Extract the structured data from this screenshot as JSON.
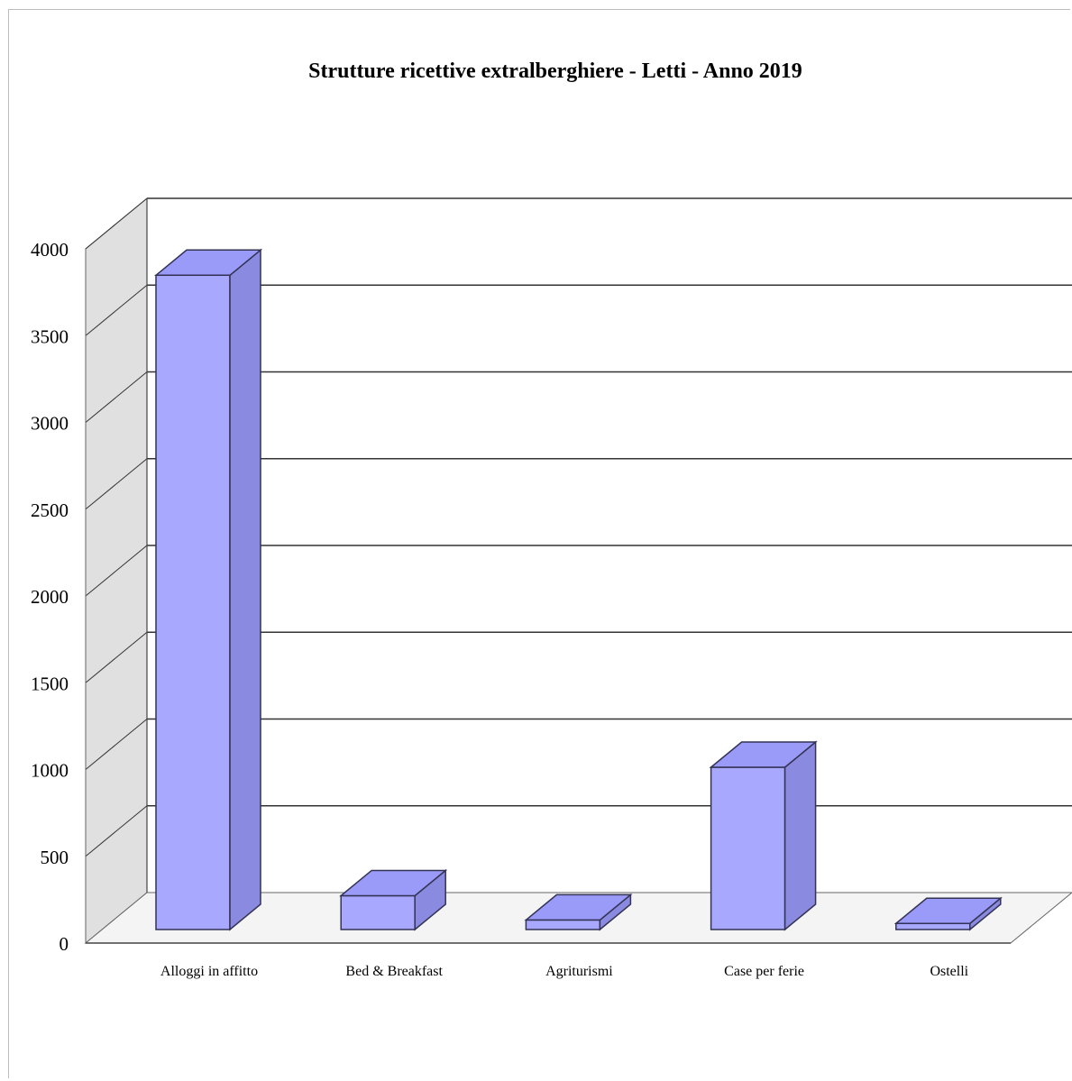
{
  "chart_data": {
    "type": "bar",
    "title": "Strutture ricettive extralberghiere - Letti - Anno 2019",
    "xlabel": "",
    "ylabel": "",
    "categories": [
      "Alloggi in affitto",
      "Bed & Breakfast",
      "Agriturismi",
      "Case per ferie",
      "Ostelli"
    ],
    "values": [
      3770,
      195,
      55,
      935,
      35
    ],
    "ylim": [
      0,
      4000
    ],
    "yticks": [
      "0",
      "500",
      "1000",
      "1500",
      "2000",
      "2500",
      "3000",
      "3500",
      "4000"
    ],
    "grid": true,
    "legend": "none",
    "three_d": true,
    "colors": {
      "bar_front": "#a8a8ff",
      "bar_side": "#8a8ae0",
      "bar_top": "#9a9af8",
      "back_wall": "#ffffff",
      "side_wall": "#e0e0e0",
      "floor": "#f4f4f4",
      "edge": "#333355",
      "grid": "#333333"
    }
  }
}
